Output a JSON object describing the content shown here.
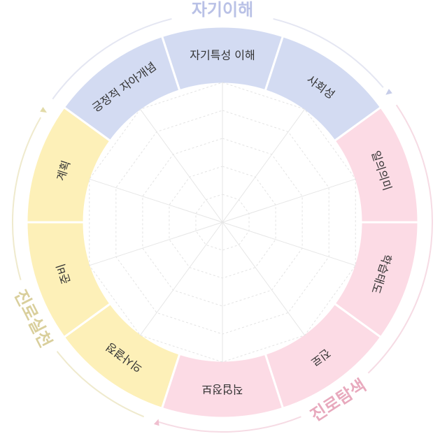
{
  "groups": [
    {
      "name": "자기이해",
      "color": "#b9c1e6"
    },
    {
      "name": "진로탐색",
      "color": "#e8a9bd"
    },
    {
      "name": "진로실천",
      "color": "#d9cf9c"
    }
  ],
  "segments": [
    {
      "label": "자기특성 이해",
      "group": 0
    },
    {
      "label": "사회성",
      "group": 0
    },
    {
      "label": "일의의미",
      "group": 1
    },
    {
      "label": "학습태도",
      "group": 1
    },
    {
      "label": "진로",
      "group": 1
    },
    {
      "label": "직업정보",
      "group": 1
    },
    {
      "label": "의사결정",
      "group": 2
    },
    {
      "label": "준비",
      "group": 2
    },
    {
      "label": "계획",
      "group": 2
    },
    {
      "label": "긍정적 자아개념",
      "group": 0
    }
  ],
  "segment_colors": [
    "#d3dbf2",
    "#fcdbe5",
    "#fdf0b8"
  ]
}
